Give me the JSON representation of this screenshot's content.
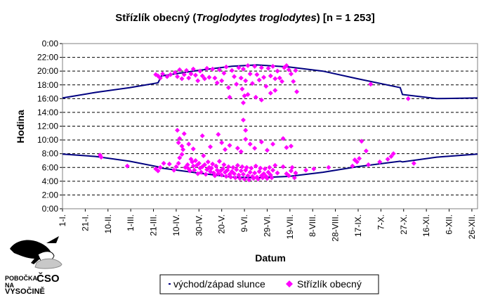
{
  "chart_data": {
    "type": "scatter",
    "title_parts": {
      "prefix": "Střízlík obecný (",
      "latin": "Troglodytes troglodytes",
      "suffix": ") [n = 1 253]"
    },
    "xlabel": "Datum",
    "ylabel": "Hodina",
    "x_unit": "day of year",
    "xlim": [
      1,
      366
    ],
    "ylim": [
      0,
      24
    ],
    "grid": "horizontal dashed",
    "legend_position": "bottom-center",
    "y_ticks": [
      "0:00",
      "2:00",
      "4:00",
      "6:00",
      "8:00",
      "10:00",
      "12:00",
      "14:00",
      "16:00",
      "18:00",
      "20:00",
      "22:00",
      "0:00"
    ],
    "x_ticks": [
      {
        "label": "1-I.",
        "day": 1
      },
      {
        "label": "21-I.",
        "day": 21
      },
      {
        "label": "10-II.",
        "day": 41
      },
      {
        "label": "1-III.",
        "day": 61
      },
      {
        "label": "21-III.",
        "day": 81
      },
      {
        "label": "10-IV.",
        "day": 101
      },
      {
        "label": "30-IV.",
        "day": 121
      },
      {
        "label": "20-V.",
        "day": 141
      },
      {
        "label": "9-VI.",
        "day": 161
      },
      {
        "label": "29-VI.",
        "day": 181
      },
      {
        "label": "19-VII.",
        "day": 201
      },
      {
        "label": "8-VIII.",
        "day": 221
      },
      {
        "label": "28-VIII.",
        "day": 241
      },
      {
        "label": "17-IX.",
        "day": 261
      },
      {
        "label": "7-X.",
        "day": 281
      },
      {
        "label": "27-X.",
        "day": 301
      },
      {
        "label": "16-XI.",
        "day": 321
      },
      {
        "label": "6-XII.",
        "day": 341
      },
      {
        "label": "26-XII.",
        "day": 361
      }
    ],
    "series": [
      {
        "name": "východ/západ slunce",
        "color": "#000080",
        "marker": "line",
        "sunrise": {
          "x": [
            1,
            30,
            60,
            85,
            88,
            120,
            150,
            172,
            200,
            230,
            260,
            298,
            300,
            330,
            366
          ],
          "y": [
            7.95,
            7.6,
            6.9,
            6.1,
            5.9,
            5.2,
            4.6,
            4.5,
            4.7,
            5.3,
            6.1,
            6.9,
            6.8,
            7.5,
            7.95
          ]
        },
        "sunset": {
          "x": [
            1,
            30,
            60,
            85,
            88,
            120,
            150,
            172,
            200,
            230,
            260,
            298,
            300,
            330,
            366
          ],
          "y": [
            16.1,
            16.9,
            17.6,
            18.3,
            19.3,
            20.1,
            20.7,
            20.9,
            20.6,
            20.0,
            18.9,
            17.6,
            16.6,
            16.0,
            16.1
          ]
        }
      },
      {
        "name": "Střízlík obecný",
        "color": "#ff00ff",
        "marker": "diamond",
        "points": [
          [
            34,
            7.8
          ],
          [
            35,
            7.5
          ],
          [
            58,
            6.2
          ],
          [
            83,
            5.8
          ],
          [
            85,
            5.5
          ],
          [
            87,
            6.0
          ],
          [
            90,
            6.6
          ],
          [
            95,
            6.5
          ],
          [
            99,
            5.6
          ],
          [
            101,
            6.1
          ],
          [
            103,
            6.6
          ],
          [
            104,
            7.4
          ],
          [
            106,
            7.9
          ],
          [
            107,
            8.6
          ],
          [
            109,
            6.0
          ],
          [
            111,
            6.4
          ],
          [
            112,
            5.8
          ],
          [
            113,
            5.5
          ],
          [
            114,
            7.2
          ],
          [
            115,
            6.8
          ],
          [
            116,
            6.2
          ],
          [
            117,
            5.6
          ],
          [
            118,
            7.0
          ],
          [
            119,
            6.3
          ],
          [
            120,
            5.1
          ],
          [
            121,
            6.6
          ],
          [
            122,
            5.9
          ],
          [
            123,
            5.3
          ],
          [
            124,
            6.1
          ],
          [
            125,
            7.7
          ],
          [
            126,
            6.4
          ],
          [
            127,
            5.0
          ],
          [
            128,
            5.7
          ],
          [
            129,
            6.8
          ],
          [
            130,
            6.0
          ],
          [
            131,
            5.4
          ],
          [
            132,
            5.9
          ],
          [
            133,
            6.5
          ],
          [
            134,
            5.2
          ],
          [
            135,
            4.8
          ],
          [
            136,
            6.2
          ],
          [
            137,
            5.6
          ],
          [
            138,
            5.1
          ],
          [
            139,
            6.9
          ],
          [
            140,
            5.5
          ],
          [
            141,
            4.9
          ],
          [
            142,
            5.8
          ],
          [
            143,
            6.4
          ],
          [
            144,
            5.3
          ],
          [
            145,
            4.7
          ],
          [
            146,
            5.6
          ],
          [
            147,
            6.1
          ],
          [
            148,
            5.0
          ],
          [
            149,
            4.6
          ],
          [
            150,
            5.4
          ],
          [
            151,
            6.0
          ],
          [
            152,
            5.1
          ],
          [
            153,
            4.5
          ],
          [
            154,
            5.7
          ],
          [
            155,
            6.3
          ],
          [
            156,
            4.9
          ],
          [
            157,
            4.4
          ],
          [
            158,
            5.5
          ],
          [
            159,
            6.1
          ],
          [
            160,
            5.0
          ],
          [
            161,
            4.3
          ],
          [
            162,
            5.6
          ],
          [
            163,
            6.0
          ],
          [
            164,
            4.8
          ],
          [
            165,
            4.2
          ],
          [
            166,
            5.3
          ],
          [
            167,
            5.9
          ],
          [
            168,
            4.7
          ],
          [
            169,
            4.4
          ],
          [
            170,
            5.2
          ],
          [
            171,
            6.2
          ],
          [
            172,
            4.6
          ],
          [
            173,
            4.3
          ],
          [
            174,
            5.4
          ],
          [
            175,
            5.9
          ],
          [
            176,
            4.8
          ],
          [
            177,
            4.5
          ],
          [
            178,
            5.1
          ],
          [
            179,
            5.8
          ],
          [
            180,
            4.7
          ],
          [
            181,
            4.4
          ],
          [
            182,
            5.3
          ],
          [
            183,
            6.0
          ],
          [
            184,
            4.9
          ],
          [
            185,
            4.5
          ],
          [
            186,
            5.6
          ],
          [
            188,
            6.3
          ],
          [
            190,
            5.2
          ],
          [
            195,
            6.1
          ],
          [
            198,
            5.1
          ],
          [
            200,
            4.8
          ],
          [
            202,
            5.5
          ],
          [
            203,
            6.0
          ],
          [
            205,
            4.5
          ],
          [
            206,
            5.2
          ],
          [
            215,
            5.6
          ],
          [
            222,
            5.8
          ],
          [
            235,
            6.0
          ],
          [
            256,
            6.2
          ],
          [
            258,
            7.1
          ],
          [
            260,
            6.8
          ],
          [
            262,
            7.3
          ],
          [
            264,
            9.8
          ],
          [
            268,
            8.4
          ],
          [
            270,
            6.4
          ],
          [
            280,
            6.8
          ],
          [
            287,
            7.2
          ],
          [
            290,
            7.6
          ],
          [
            292,
            8.0
          ],
          [
            310,
            6.6
          ],
          [
            102,
            11.4
          ],
          [
            103,
            9.6
          ],
          [
            104,
            10.2
          ],
          [
            106,
            9.1
          ],
          [
            108,
            10.9
          ],
          [
            112,
            9.4
          ],
          [
            116,
            8.7
          ],
          [
            124,
            10.6
          ],
          [
            131,
            9.0
          ],
          [
            138,
            10.8
          ],
          [
            141,
            9.6
          ],
          [
            144,
            8.6
          ],
          [
            148,
            9.2
          ],
          [
            155,
            8.8
          ],
          [
            158,
            8.3
          ],
          [
            162,
            10.1
          ],
          [
            166,
            9.4
          ],
          [
            170,
            8.8
          ],
          [
            176,
            9.7
          ],
          [
            181,
            8.5
          ],
          [
            186,
            9.4
          ],
          [
            195,
            10.2
          ],
          [
            198,
            8.9
          ],
          [
            202,
            9.1
          ],
          [
            160,
            12.9
          ],
          [
            162,
            11.4
          ],
          [
            159,
            17.4
          ],
          [
            160,
            15.4
          ],
          [
            161,
            16.4
          ],
          [
            83,
            19.5
          ],
          [
            85,
            19.3
          ],
          [
            87,
            19.0
          ],
          [
            89,
            19.6
          ],
          [
            93,
            19.2
          ],
          [
            96,
            19.5
          ],
          [
            100,
            19.8
          ],
          [
            102,
            19.2
          ],
          [
            104,
            20.2
          ],
          [
            106,
            18.9
          ],
          [
            108,
            19.5
          ],
          [
            110,
            20.1
          ],
          [
            112,
            19.0
          ],
          [
            114,
            19.6
          ],
          [
            116,
            20.3
          ],
          [
            118,
            19.4
          ],
          [
            120,
            18.6
          ],
          [
            122,
            20.0
          ],
          [
            124,
            19.3
          ],
          [
            126,
            18.9
          ],
          [
            128,
            20.4
          ],
          [
            130,
            19.1
          ],
          [
            133,
            20.3
          ],
          [
            135,
            19.0
          ],
          [
            137,
            18.3
          ],
          [
            139,
            20.2
          ],
          [
            141,
            18.6
          ],
          [
            143,
            19.7
          ],
          [
            145,
            20.6
          ],
          [
            147,
            17.6
          ],
          [
            148,
            16.2
          ],
          [
            150,
            20.1
          ],
          [
            152,
            19.2
          ],
          [
            154,
            18.1
          ],
          [
            156,
            20.5
          ],
          [
            158,
            19.0
          ],
          [
            160,
            20.3
          ],
          [
            162,
            18.6
          ],
          [
            164,
            20.8
          ],
          [
            166,
            19.6
          ],
          [
            168,
            18.2
          ],
          [
            170,
            20.7
          ],
          [
            172,
            19.5
          ],
          [
            174,
            18.7
          ],
          [
            176,
            20.5
          ],
          [
            178,
            19.1
          ],
          [
            180,
            17.8
          ],
          [
            182,
            20.4
          ],
          [
            184,
            19.3
          ],
          [
            186,
            20.7
          ],
          [
            188,
            18.9
          ],
          [
            190,
            20.0
          ],
          [
            192,
            19.0
          ],
          [
            194,
            18.5
          ],
          [
            196,
            20.5
          ],
          [
            198,
            20.8
          ],
          [
            200,
            20.2
          ],
          [
            202,
            19.6
          ],
          [
            204,
            18.5
          ],
          [
            206,
            20.1
          ],
          [
            207,
            17.0
          ],
          [
            164,
            16.6
          ],
          [
            171,
            16.2
          ],
          [
            176,
            15.8
          ],
          [
            184,
            16.8
          ],
          [
            188,
            17.2
          ],
          [
            272,
            18.1
          ],
          [
            305,
            16.0
          ]
        ]
      }
    ]
  },
  "logo": {
    "line1": "POBOČKA",
    "big": "ČSO",
    "line2": "NA",
    "line3": "VYSOČINĚ"
  }
}
